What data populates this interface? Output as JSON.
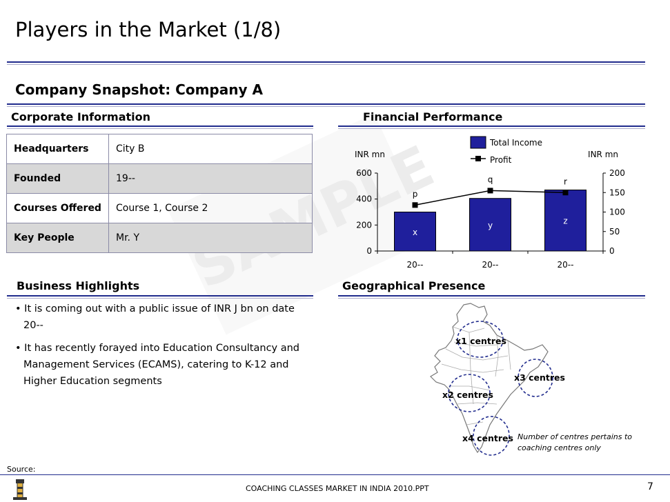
{
  "page": {
    "title": "Players in the Market (1/8)",
    "subtitle": "Company Snapshot: Company A",
    "source": "Source:",
    "footer": "COACHING CLASSES MARKET IN INDIA 2010.PPT",
    "page_number": "7",
    "watermark": "SAMPLE"
  },
  "corporate": {
    "heading": "Corporate Information",
    "rows": [
      {
        "key": "Headquarters",
        "value": "City B"
      },
      {
        "key": "Founded",
        "value": "19--"
      },
      {
        "key": "Courses Offered",
        "value": "Course 1, Course 2"
      },
      {
        "key": "Key People",
        "value": "Mr. Y"
      }
    ]
  },
  "financial": {
    "heading": "Financial Performance"
  },
  "chart_data": {
    "type": "bar",
    "categories": [
      "20--",
      "20--",
      "20--"
    ],
    "series": [
      {
        "name": "Total Income",
        "type": "bar",
        "axis": "left",
        "values": [
          300,
          405,
          470
        ],
        "labels": [
          "x",
          "y",
          "z"
        ],
        "color": "#1f1f9c"
      },
      {
        "name": "Profit",
        "type": "line",
        "axis": "right",
        "values": [
          118,
          155,
          150
        ],
        "labels": [
          "p",
          "q",
          "r"
        ],
        "color": "#000000"
      }
    ],
    "ylabel": "INR mn",
    "y2label": "INR mn",
    "ylim": [
      0,
      600
    ],
    "y2lim": [
      0,
      200
    ],
    "yticks": [
      0,
      200,
      400,
      600
    ],
    "y2ticks": [
      0,
      50,
      100,
      150,
      200
    ],
    "legend": "top-center"
  },
  "business": {
    "heading": "Business Highlights",
    "bullets": [
      "It is coming out with a public issue of INR J bn on date 20--",
      "It has recently forayed into Education Consultancy and Management Services (ECAMS), catering to K-12 and Higher Education segments"
    ]
  },
  "geo": {
    "heading": "Geographical Presence",
    "centres": [
      "x1 centres",
      "x2 centres",
      "x3 centres",
      "x4 centres"
    ],
    "note": "Number of centres pertains to coaching centres only"
  },
  "colors": {
    "accent_blue": "#1f2a8c",
    "bar_fill": "#1f1f9c",
    "table_shade": "#d8d8d8"
  }
}
